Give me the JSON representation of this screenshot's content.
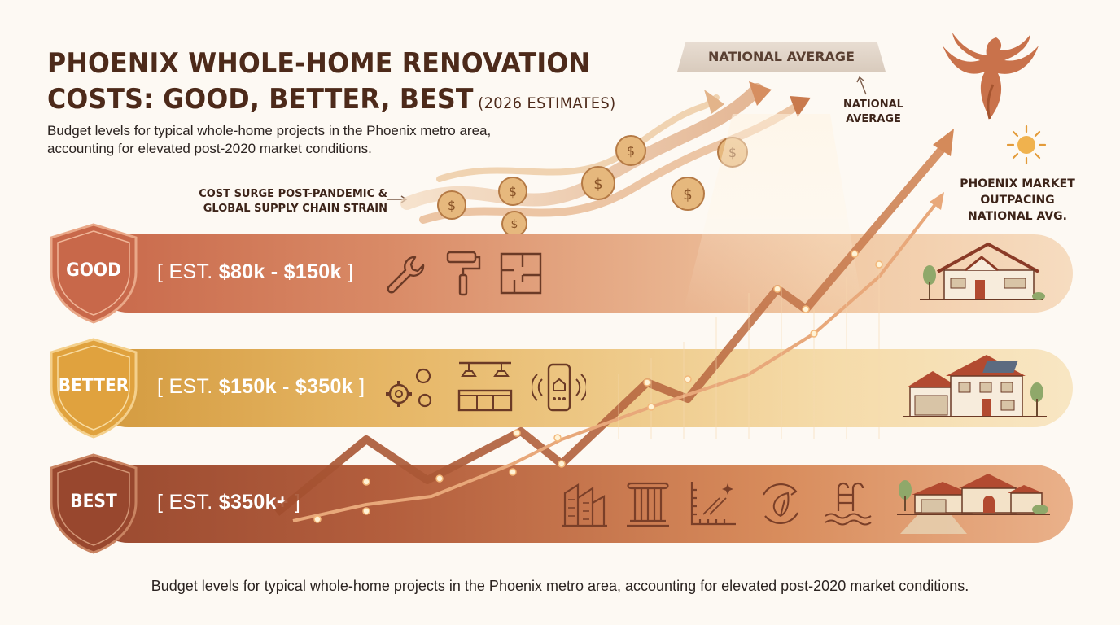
{
  "header": {
    "title_line1": "PHOENIX WHOLE-HOME RENOVATION",
    "title_line2": "COSTS: GOOD, BETTER, BEST",
    "title_suffix": "(2026 ESTIMATES)",
    "subtitle_line1": "Budget levels for typical whole-home projects in the Phoenix metro area,",
    "subtitle_line2": "accounting for elevated post-2020 market conditions."
  },
  "annotations": {
    "cost_surge_line1": "COST SURGE POST-PANDEMIC &",
    "cost_surge_line2": "GLOBAL SUPPLY CHAIN STRAIN",
    "national_banner": "NATIONAL AVERAGE",
    "national_line1": "NATIONAL",
    "national_line2": "AVERAGE",
    "phoenix_line1": "PHOENIX MARKET",
    "phoenix_line2": "OUTPACING",
    "phoenix_line3": "NATIONAL AVG."
  },
  "tiers": [
    {
      "label": "GOOD",
      "range_prefix": "[ EST.",
      "range_value": "$80k - $150k",
      "range_suffix": "]",
      "icons": [
        "wrench-icon",
        "paint-roller-icon",
        "floor-plan-icon"
      ],
      "house": "small-house-icon"
    },
    {
      "label": "BETTER",
      "range_prefix": "[ EST.",
      "range_value": "$150k - $350k",
      "range_suffix": "]",
      "icons": [
        "gears-icon",
        "kitchen-icon",
        "smart-home-phone-icon"
      ],
      "house": "solar-house-icon"
    },
    {
      "label": "BEST",
      "range_prefix": "[ EST.",
      "range_value": "$350k+",
      "range_suffix": "]",
      "icons": [
        "architecture-icon",
        "column-icon",
        "design-ruler-icon",
        "eco-leaf-icon",
        "pool-ladder-icon"
      ],
      "house": "luxury-house-icon"
    }
  ],
  "footer": {
    "text": "Budget levels for typical whole-home projects in the Phoenix metro area, accounting for elevated post-2020 market conditions."
  },
  "colors": {
    "good": "#c8684a",
    "better": "#d39a3e",
    "best": "#9a4a30",
    "trend": "#c97a4d",
    "title": "#4d2a1a"
  }
}
